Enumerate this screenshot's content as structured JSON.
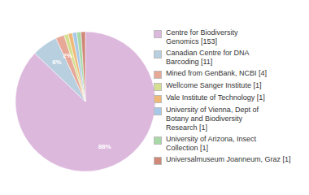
{
  "chart_data": {
    "type": "pie",
    "categories": [
      "Centre for Biodiversity\nGenomics [153]",
      "Canadian Centre for DNA\nBarcoding [11]",
      "Mined from GenBank, NCBI [4]",
      "Wellcome Sanger Institute [1]",
      "Vale Institute of Technology [1]",
      "University of Vienna, Dept of\nBotany and Biodiversity\nResearch [1]",
      "University of Arizona, Insect\nCollection [1]",
      "Universalmuseum Joanneum, Graz [1]"
    ],
    "values": [
      88,
      6,
      2,
      1,
      1,
      1,
      1,
      1
    ],
    "value_labels": [
      "88%",
      "6%",
      "2%",
      null,
      null,
      null,
      null,
      null
    ],
    "data_labels": true,
    "colors": [
      "#ddb8dd",
      "#b8cfe0",
      "#e8a898",
      "#d4e090",
      "#f0b878",
      "#a8c8e8",
      "#a8d8a8",
      "#d08878"
    ],
    "legend": "right"
  }
}
